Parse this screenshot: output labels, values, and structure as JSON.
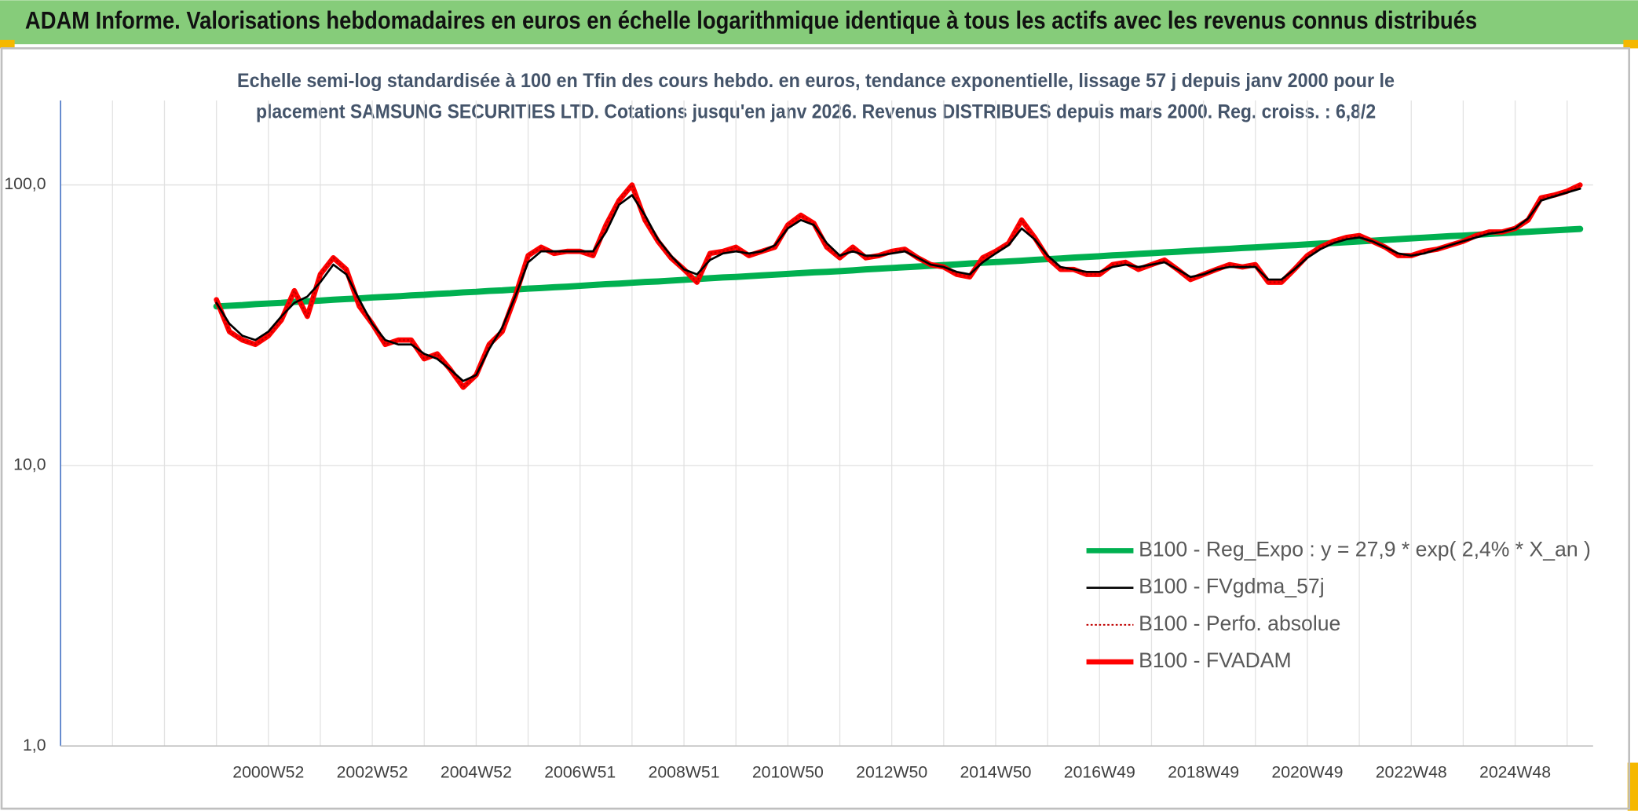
{
  "header": {
    "title": "ADAM Informe. Valorisations hebdomadaires en euros en échelle logarithmique identique à tous les actifs avec les revenus connus distribués"
  },
  "chart_data": {
    "type": "line",
    "title": [
      "Echelle semi-log standardisée à 100 en Tfin des cours hebdo. en euros, tendance exponentielle, lissage 57 j depuis janv 2000 pour le",
      "placement SAMSUNG SECURITIES LTD. Cotations jusqu'en janv 2026. Revenus DISTRIBUES depuis mars 2000. Reg. croiss. : 6,8/2"
    ],
    "log_scale": true,
    "ylim": [
      1,
      200
    ],
    "yticks": [
      {
        "value": 1,
        "label": "1,0"
      },
      {
        "value": 10,
        "label": "10,0"
      },
      {
        "value": 100,
        "label": "100,0"
      }
    ],
    "grid": true,
    "legend": "lower right",
    "categories": [
      null,
      null,
      null,
      null,
      null,
      null,
      null,
      null,
      null,
      null,
      null,
      null,
      null,
      null,
      null,
      null,
      "2000W52",
      null,
      null,
      null,
      null,
      null,
      null,
      null,
      "2002W52",
      null,
      null,
      null,
      null,
      null,
      null,
      null,
      "2004W52",
      null,
      null,
      null,
      null,
      null,
      null,
      null,
      "2006W51",
      null,
      null,
      null,
      null,
      null,
      null,
      null,
      "2008W51",
      null,
      null,
      null,
      null,
      null,
      null,
      null,
      "2010W50",
      null,
      null,
      null,
      null,
      null,
      null,
      null,
      "2012W50",
      null,
      null,
      null,
      null,
      null,
      null,
      null,
      "2014W50",
      null,
      null,
      null,
      null,
      null,
      null,
      null,
      "2016W49",
      null,
      null,
      null,
      null,
      null,
      null,
      null,
      "2018W49",
      null,
      null,
      null,
      null,
      null,
      null,
      null,
      "2020W49",
      null,
      null,
      null,
      null,
      null,
      null,
      null,
      "2022W48",
      null,
      null,
      null,
      null,
      null,
      null,
      null,
      "2024W48",
      null,
      null,
      null,
      null,
      null
    ],
    "series": [
      {
        "name": "B100 - Reg_Expo : y = 27,9 * exp( 2,4% *  X_an )",
        "color": "#00b050",
        "width": 6,
        "dashed": false,
        "values": [
          null,
          null,
          null,
          null,
          null,
          null,
          null,
          null,
          null,
          null,
          null,
          null,
          36.9,
          37.1,
          37.3,
          37.6,
          37.8,
          38.0,
          38.3,
          38.5,
          38.7,
          39.0,
          39.2,
          39.4,
          39.7,
          39.9,
          40.1,
          40.4,
          40.6,
          40.9,
          41.1,
          41.4,
          41.6,
          41.9,
          42.1,
          42.4,
          42.7,
          42.9,
          43.2,
          43.4,
          43.7,
          44.0,
          44.3,
          44.5,
          44.8,
          45.1,
          45.3,
          45.6,
          45.9,
          46.2,
          46.5,
          46.8,
          47.0,
          47.3,
          47.6,
          47.9,
          48.2,
          48.5,
          48.8,
          49.0,
          49.3,
          49.6,
          50.0,
          50.3,
          50.6,
          50.9,
          51.2,
          51.5,
          51.8,
          52.1,
          52.5,
          52.8,
          53.1,
          53.4,
          53.7,
          54.1,
          54.4,
          54.7,
          55.1,
          55.4,
          55.7,
          56.1,
          56.4,
          56.8,
          57.1,
          57.5,
          57.8,
          58.2,
          58.5,
          58.9,
          59.2,
          59.6,
          59.9,
          60.3,
          60.7,
          61.0,
          61.4,
          61.8,
          62.1,
          62.5,
          62.9,
          63.3,
          63.7,
          64.1,
          64.5,
          64.9,
          65.3,
          65.7,
          66.0,
          66.4,
          66.9,
          67.3,
          67.7,
          68.1,
          68.5,
          68.9,
          69.3,
          69.7
        ]
      },
      {
        "name": "B100 - FVgdma_57j",
        "color": "#000000",
        "width": 2,
        "dashed": false,
        "values": [
          null,
          null,
          null,
          null,
          null,
          null,
          null,
          null,
          null,
          null,
          null,
          null,
          38,
          32,
          29,
          28,
          30,
          34,
          38,
          40,
          45,
          52,
          48,
          39,
          32,
          28,
          27,
          27,
          25,
          24,
          22,
          20,
          21,
          26,
          31,
          40,
          53,
          58,
          58,
          58,
          58,
          58,
          68,
          85,
          92,
          78,
          64,
          56,
          50,
          48,
          54,
          57,
          58,
          57,
          58,
          61,
          70,
          75,
          72,
          62,
          56,
          58,
          56,
          56,
          57,
          58,
          55,
          52,
          51,
          49,
          48,
          53,
          57,
          61,
          70,
          64,
          56,
          51,
          50,
          49,
          49,
          51,
          52,
          51,
          52,
          53,
          50,
          47,
          48,
          50,
          51,
          51,
          51,
          46,
          46,
          50,
          55,
          59,
          62,
          64,
          65,
          63,
          60,
          57,
          56,
          57,
          59,
          61,
          63,
          65,
          67,
          68,
          70,
          76,
          88,
          91,
          94,
          97
        ]
      },
      {
        "name": "B100 - Perfo. absolue",
        "color": "#c00000",
        "width": 1.5,
        "dashed": true,
        "values": [
          null,
          null,
          null,
          null,
          null,
          null,
          null,
          null,
          null,
          null,
          null,
          null,
          39,
          30,
          28,
          27,
          29,
          33,
          42,
          34,
          48,
          55,
          50,
          37,
          32,
          27,
          28,
          28,
          24,
          25,
          22,
          19,
          21,
          27,
          30,
          40,
          56,
          60,
          57,
          58,
          58,
          56,
          72,
          88,
          100,
          75,
          63,
          55,
          50,
          45,
          57,
          58,
          60,
          56,
          58,
          60,
          72,
          78,
          73,
          60,
          55,
          60,
          55,
          56,
          58,
          59,
          55,
          52,
          51,
          48,
          47,
          55,
          58,
          62,
          75,
          65,
          55,
          50,
          50,
          48,
          48,
          52,
          53,
          50,
          52,
          54,
          50,
          46,
          48,
          50,
          52,
          51,
          52,
          45,
          45,
          50,
          56,
          60,
          63,
          65,
          66,
          63,
          60,
          56,
          56,
          58,
          59,
          61,
          63,
          66,
          68,
          68,
          70,
          75,
          90,
          92,
          95,
          100
        ]
      },
      {
        "name": "B100 - FVADAM",
        "color": "#ff0000",
        "width": 5,
        "dashed": false,
        "values": [
          null,
          null,
          null,
          null,
          null,
          null,
          null,
          null,
          null,
          null,
          null,
          null,
          39,
          30,
          28,
          27,
          29,
          33,
          42,
          34,
          48,
          55,
          50,
          37,
          32,
          27,
          28,
          28,
          24,
          25,
          22,
          19,
          21,
          27,
          30,
          40,
          56,
          60,
          57,
          58,
          58,
          56,
          72,
          88,
          100,
          75,
          63,
          55,
          50,
          45,
          57,
          58,
          60,
          56,
          58,
          60,
          72,
          78,
          73,
          60,
          55,
          60,
          55,
          56,
          58,
          59,
          55,
          52,
          51,
          48,
          47,
          55,
          58,
          62,
          75,
          65,
          55,
          50,
          50,
          48,
          48,
          52,
          53,
          50,
          52,
          54,
          50,
          46,
          48,
          50,
          52,
          51,
          52,
          45,
          45,
          50,
          56,
          60,
          63,
          65,
          66,
          63,
          60,
          56,
          56,
          58,
          59,
          61,
          63,
          66,
          68,
          68,
          70,
          75,
          90,
          92,
          95,
          100
        ]
      }
    ]
  }
}
